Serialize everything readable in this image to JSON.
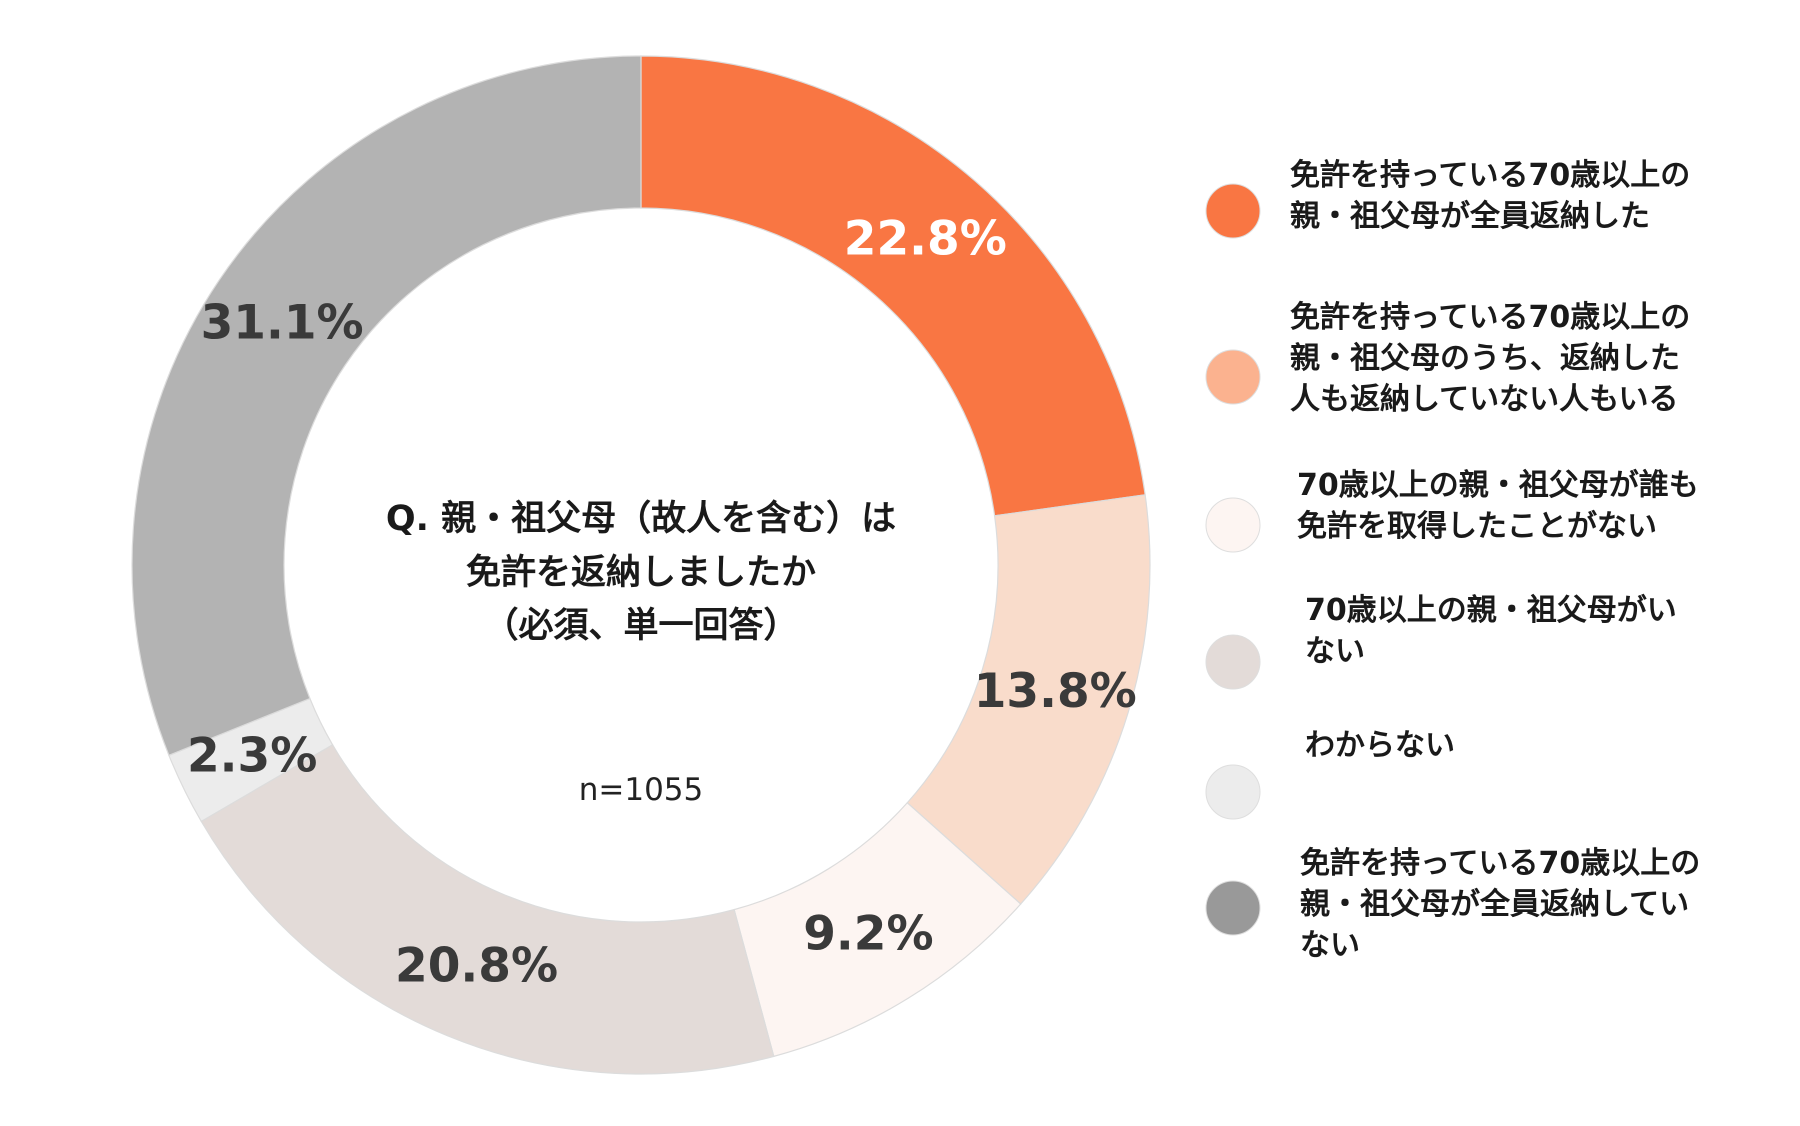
{
  "chart_data": {
    "type": "pie",
    "style": "donut",
    "center_text": [
      "Q. 親・祖父母（故人を含む）は",
      "免許を返納しましたか",
      "（必須、単一回答）"
    ],
    "sample_size": "n=1055",
    "legend_position": "right",
    "slices": [
      {
        "label": [
          "免許を持っている70歳以上の",
          "親・祖父母が全員返納した"
        ],
        "value": 22.8,
        "value_label": "22.8%",
        "color": "#f97643",
        "label_color": "#ffffff"
      },
      {
        "label": [
          "免許を持っている70歳以上の",
          "親・祖父母のうち、返納した",
          "人も返納していない人もいる"
        ],
        "value": 13.8,
        "value_label": "13.8%",
        "color": "#f9dccb",
        "legend_color": "#fbb28f",
        "label_color": "#3a3a3a"
      },
      {
        "label": [
          "70歳以上の親・祖父母が誰も",
          "免許を取得したことがない"
        ],
        "value": 9.2,
        "value_label": "9.2%",
        "color": "#fdf5f2",
        "label_color": "#3a3a3a"
      },
      {
        "label": [
          "70歳以上の親・祖父母がい",
          "ない"
        ],
        "value": 20.8,
        "value_label": "20.8%",
        "color": "#e3dbd8",
        "label_color": "#3a3a3a"
      },
      {
        "label": [
          "わからない"
        ],
        "value": 2.3,
        "value_label": "2.3%",
        "color": "#ececec",
        "label_color": "#3a3a3a"
      },
      {
        "label": [
          "免許を持っている70歳以上の",
          "親・祖父母が全員返納してい",
          "ない"
        ],
        "value": 31.1,
        "value_label": "31.1%",
        "color": "#b3b3b3",
        "legend_color": "#999999",
        "label_color": "#3a3a3a"
      }
    ]
  }
}
